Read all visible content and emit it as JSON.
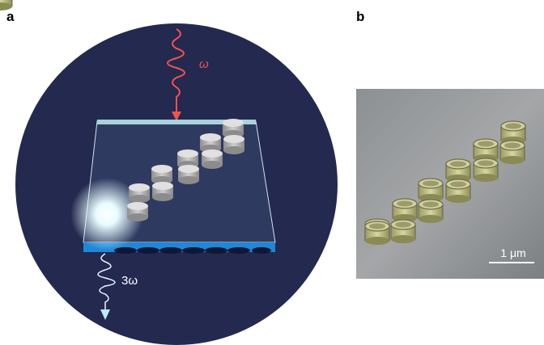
{
  "panels": [
    {
      "label": "a",
      "input_label": "ω",
      "output_label": "3ω"
    },
    {
      "label": "b",
      "scale_bar": "1 μm"
    }
  ]
}
